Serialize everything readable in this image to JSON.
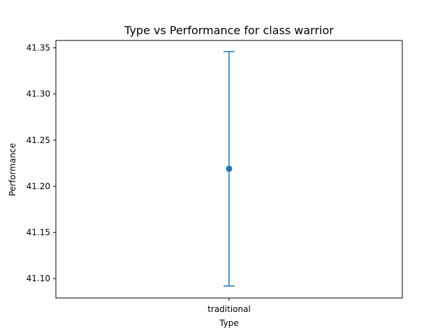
{
  "chart_data": {
    "type": "scatter",
    "title": "Type vs Performance for class warrior",
    "xlabel": "Type",
    "ylabel": "Performance",
    "categories": [
      "traditional"
    ],
    "values": [
      41.219
    ],
    "error_low": [
      41.092
    ],
    "error_high": [
      41.346
    ],
    "ylim": [
      41.079,
      41.358
    ],
    "yticks": [
      41.1,
      41.15,
      41.2,
      41.25,
      41.3,
      41.35
    ],
    "ytick_labels": [
      "41.10",
      "41.15",
      "41.20",
      "41.25",
      "41.30",
      "41.35"
    ],
    "grid": false,
    "color": "#1f77b4"
  }
}
